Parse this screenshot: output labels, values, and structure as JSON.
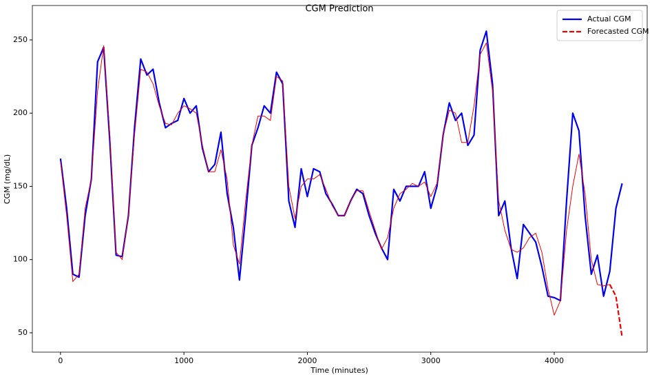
{
  "chart_data": {
    "type": "line",
    "title": "CGM Prediction",
    "x_label": "Time (minutes)",
    "y_label": "CGM (mg/dL)",
    "x": [
      0,
      50,
      100,
      150,
      200,
      250,
      300,
      350,
      400,
      450,
      500,
      550,
      600,
      650,
      700,
      750,
      800,
      850,
      900,
      950,
      1000,
      1050,
      1100,
      1150,
      1200,
      1250,
      1300,
      1350,
      1400,
      1450,
      1500,
      1550,
      1600,
      1650,
      1700,
      1750,
      1800,
      1850,
      1900,
      1950,
      2000,
      2050,
      2100,
      2150,
      2200,
      2250,
      2300,
      2350,
      2400,
      2450,
      2500,
      2550,
      2600,
      2650,
      2700,
      2750,
      2800,
      2850,
      2900,
      2950,
      3000,
      3050,
      3100,
      3150,
      3200,
      3250,
      3300,
      3350,
      3400,
      3450,
      3500,
      3550,
      3600,
      3650,
      3700,
      3750,
      3800,
      3850,
      3900,
      3950,
      4000,
      4050,
      4100,
      4150,
      4200,
      4250,
      4300,
      4350,
      4400,
      4450,
      4500,
      4550
    ],
    "series": [
      {
        "name": "Actual CGM",
        "color": "#0000ee",
        "width": 2.2,
        "dashed": false,
        "values": [
          169,
          135,
          90,
          88,
          130,
          155,
          235,
          245,
          180,
          103,
          102,
          130,
          190,
          237,
          226,
          230,
          207,
          190,
          193,
          195,
          210,
          200,
          205,
          176,
          160,
          165,
          187,
          145,
          122,
          86,
          130,
          178,
          190,
          205,
          200,
          228,
          220,
          140,
          122,
          162,
          143,
          162,
          160,
          145,
          138,
          130,
          130,
          140,
          148,
          145,
          130,
          118,
          108,
          100,
          148,
          140,
          150,
          150,
          150,
          160,
          135,
          150,
          185,
          207,
          195,
          200,
          178,
          185,
          243,
          256,
          220,
          130,
          140,
          108,
          87,
          124,
          118,
          112,
          95,
          75,
          74,
          72,
          140,
          200,
          188,
          130,
          90,
          103,
          75,
          92,
          135,
          152
        ]
      },
      {
        "color": "#ee0000",
        "width": 1,
        "dashed": false,
        "values": [
          167,
          130,
          85,
          90,
          135,
          155,
          215,
          246,
          185,
          105,
          100,
          130,
          185,
          230,
          228,
          220,
          205,
          193,
          192,
          200,
          205,
          203,
          200,
          178,
          160,
          160,
          175,
          155,
          110,
          97,
          140,
          178,
          198,
          198,
          195,
          225,
          222,
          150,
          128,
          150,
          155,
          155,
          158,
          148,
          137,
          130,
          130,
          140,
          147,
          147,
          133,
          120,
          107,
          115,
          135,
          145,
          148,
          152,
          150,
          153,
          143,
          152,
          185,
          202,
          200,
          180,
          180,
          205,
          240,
          248,
          215,
          140,
          120,
          107,
          105,
          108,
          115,
          118,
          105,
          80,
          62,
          72,
          120,
          150,
          172,
          145,
          100,
          83,
          82,
          83,
          null,
          null
        ]
      },
      {
        "name": "Forecasted CGM",
        "color": "#ee0000",
        "width": 2.2,
        "dashed": true,
        "values": [
          null,
          null,
          null,
          null,
          null,
          null,
          null,
          null,
          null,
          null,
          null,
          null,
          null,
          null,
          null,
          null,
          null,
          null,
          null,
          null,
          null,
          null,
          null,
          null,
          null,
          null,
          null,
          null,
          null,
          null,
          null,
          null,
          null,
          null,
          null,
          null,
          null,
          null,
          null,
          null,
          null,
          null,
          null,
          null,
          null,
          null,
          null,
          null,
          null,
          null,
          null,
          null,
          null,
          null,
          null,
          null,
          null,
          null,
          null,
          null,
          null,
          null,
          null,
          null,
          null,
          null,
          null,
          null,
          null,
          null,
          null,
          null,
          null,
          null,
          null,
          null,
          null,
          null,
          null,
          null,
          null,
          null,
          null,
          null,
          null,
          null,
          null,
          null,
          null,
          83,
          75,
          47
        ]
      }
    ],
    "xlim": [
      -228,
      4753
    ],
    "ylim": [
      36.8,
      273.5
    ],
    "xticks": [
      0,
      1000,
      2000,
      3000,
      4000
    ],
    "yticks": [
      50,
      100,
      150,
      200,
      250
    ],
    "legend": "upper right"
  }
}
